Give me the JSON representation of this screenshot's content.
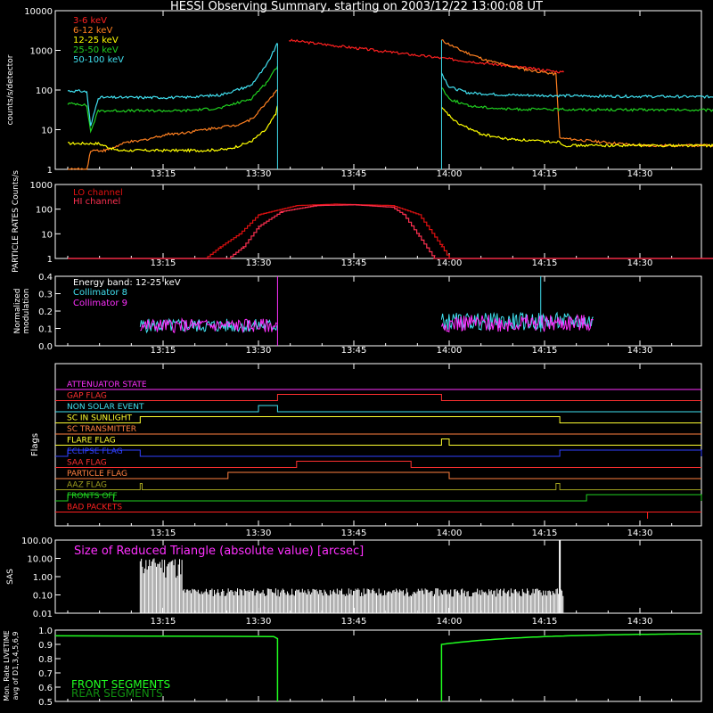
{
  "title": "HESSI Observing Summary, starting on 2003/12/22 13:00:08 UT",
  "time_ticks": [
    "13:15",
    "13:30",
    "13:45",
    "14:00",
    "14:15",
    "14:30"
  ],
  "colors": {
    "c3_6": "#ff2020",
    "c6_12": "#ff8020",
    "c12_25": "#ffff00",
    "c25_50": "#20d020",
    "c50_100": "#40e0f0",
    "lo": "#e01010",
    "hi": "#ff3050",
    "mag": "#ff30ff",
    "cyan": "#40e0f0",
    "front": "#20ff20",
    "rear": "#109010"
  },
  "chart_data": [
    {
      "id": "count-rate",
      "type": "line",
      "ylabel": "counts/s/detector",
      "yscale": "log",
      "ylim": [
        1,
        10000
      ],
      "yticks": [
        "1",
        "10",
        "100",
        "1000",
        "10000"
      ],
      "legend": [
        "3-6 keV",
        "6-12 keV",
        "12-25 keV",
        "25-50 keV",
        "50-100 keV"
      ],
      "legend_position": "top-left",
      "series": [
        {
          "name": "3-6 keV",
          "color": "#ff2020",
          "points": [
            [
              13.35,
              0.8
            ],
            [
              13.35,
              0.8
            ]
          ],
          "segments": [
            {
              "x": [
                13.58,
                14.3
              ],
              "y": [
                1800,
                280
              ]
            }
          ]
        },
        {
          "name": "6-12 keV",
          "color": "#ff8020",
          "segments": [
            {
              "x": [
                13.0,
                13.03,
                13.05,
                13.06,
                13.1,
                13.16,
                13.18,
                13.27,
                13.29,
                13.41,
                13.44,
                13.48,
                13.5,
                13.54,
                13.55
              ],
              "y": [
                1,
                1,
                1,
                3,
                3,
                5,
                5,
                8,
                8,
                12,
                13,
                18,
                28,
                80,
                100
              ]
            },
            {
              "x": [
                13.98,
                14.03,
                14.1,
                14.2,
                14.28,
                14.29,
                14.3,
                14.5,
                15.0
              ],
              "y": [
                1800,
                1000,
                550,
                330,
                250,
                6,
                6,
                4,
                4
              ]
            }
          ]
        },
        {
          "name": "12-25 keV",
          "color": "#ffff00",
          "segments": [
            {
              "x": [
                13.0,
                13.08,
                13.13,
                13.2,
                13.27,
                13.35,
                13.42,
                13.48,
                13.52,
                13.545,
                13.55
              ],
              "y": [
                4.5,
                4.5,
                3,
                3,
                3,
                3,
                3.2,
                5,
                10,
                25,
                40
              ]
            },
            {
              "x": [
                13.98,
                14.02,
                14.08,
                14.14,
                14.25,
                14.29,
                14.3,
                14.5,
                15.0
              ],
              "y": [
                35,
                15,
                8,
                6,
                5,
                5,
                4,
                4,
                4
              ]
            }
          ]
        },
        {
          "name": "25-50 keV",
          "color": "#20d020",
          "segments": [
            {
              "x": [
                13.0,
                13.03,
                13.05,
                13.06,
                13.08,
                13.3,
                13.4,
                13.48,
                13.52,
                13.55
              ],
              "y": [
                45,
                45,
                40,
                9,
                30,
                30,
                35,
                60,
                150,
                400
              ]
            },
            {
              "x": [
                13.98,
                14.0,
                14.05,
                14.15,
                14.4,
                15.0
              ],
              "y": [
                120,
                60,
                40,
                33,
                32,
                30
              ]
            }
          ]
        },
        {
          "name": "50-100 keV",
          "color": "#40e0f0",
          "segments": [
            {
              "x": [
                13.0,
                13.03,
                13.05,
                13.06,
                13.08,
                13.3,
                13.4,
                13.48,
                13.52,
                13.55
              ],
              "y": [
                95,
                95,
                90,
                12,
                65,
                65,
                75,
                130,
                400,
                1500
              ]
            },
            {
              "x": [
                13.98,
                14.0,
                14.05,
                14.15,
                14.4,
                15.0
              ],
              "y": [
                270,
                120,
                85,
                75,
                70,
                65
              ]
            }
          ]
        }
      ]
    },
    {
      "id": "particle-rates",
      "type": "line",
      "ylabel": "PARTICLE RATES Counts/s",
      "yscale": "log",
      "ylim": [
        1,
        1000
      ],
      "yticks": [
        "1",
        "10",
        "100",
        "1000"
      ],
      "legend": [
        "LO channel",
        "HI channel"
      ],
      "legend_position": "top-left",
      "series": [
        {
          "name": "LO channel",
          "color": "#e01010",
          "x": [
            13.0,
            13.36,
            13.4,
            13.45,
            13.5,
            13.6,
            13.7,
            13.85,
            13.92,
            13.98,
            14.0,
            15.0
          ],
          "y": [
            1,
            1,
            3,
            10,
            60,
            140,
            160,
            140,
            60,
            3,
            1,
            1
          ]
        },
        {
          "name": "HI channel",
          "color": "#ff3050",
          "x": [
            13.0,
            13.42,
            13.46,
            13.5,
            13.56,
            13.65,
            13.75,
            13.85,
            13.88,
            13.92,
            13.96,
            15.0
          ],
          "y": [
            1,
            1,
            3,
            20,
            80,
            140,
            150,
            120,
            60,
            8,
            1,
            1
          ]
        }
      ]
    },
    {
      "id": "modulation",
      "type": "line",
      "ylabel": "Normalized modulation",
      "ylim": [
        0,
        0.4
      ],
      "yticks": [
        "0.0",
        "0.1",
        "0.2",
        "0.3",
        "0.4"
      ],
      "legend": [
        "Energy band: 12-25 keV",
        "Collimator 8",
        "Collimator 9"
      ],
      "legend_position": "top-left"
    },
    {
      "id": "flags",
      "type": "line",
      "ylabel": "Flags",
      "flags": [
        {
          "name": "ATTENUATOR STATE",
          "color": "#ff30ff",
          "on": []
        },
        {
          "name": "GAP FLAG",
          "color": "#ff3030",
          "on": [
            [
              13.55,
              13.98
            ]
          ]
        },
        {
          "name": "NON SOLAR EVENT",
          "color": "#40e0f0",
          "on": [
            [
              13.5,
              13.55
            ]
          ]
        },
        {
          "name": "SC IN SUNLIGHT",
          "color": "#ffff30",
          "on": [
            [
              13.19,
              14.29
            ]
          ]
        },
        {
          "name": "SC TRANSMITTER",
          "color": "#ff8040",
          "on": []
        },
        {
          "name": "FLARE FLAG",
          "color": "#ffff30",
          "on": [
            [
              13.98,
              14.0
            ]
          ]
        },
        {
          "name": "ECLIPSE FLAG",
          "color": "#3040ff",
          "on": [
            [
              13.0,
              13.19
            ],
            [
              14.29,
              15.0
            ]
          ]
        },
        {
          "name": "SAA FLAG",
          "color": "#ff3030",
          "on": [
            [
              13.6,
              13.9
            ]
          ]
        },
        {
          "name": "PARTICLE FLAG",
          "color": "#ff8040",
          "on": [
            [
              13.42,
              14.0
            ]
          ]
        },
        {
          "name": "AAZ FLAG",
          "color": "#a0a020",
          "on": [
            [
              13.19,
              13.195
            ],
            [
              14.28,
              14.29
            ]
          ]
        },
        {
          "name": "FRONTS OFF",
          "color": "#20d020",
          "on": [
            [
              13.0,
              13.12
            ],
            [
              14.36,
              15.0
            ]
          ]
        },
        {
          "name": "BAD PACKETS",
          "color": "#ff2020",
          "on": []
        }
      ]
    },
    {
      "id": "sas",
      "type": "bar",
      "ylabel": "SAS",
      "yscale": "log",
      "ylim": [
        0.01,
        100
      ],
      "yticks": [
        "0.01",
        "0.10",
        "1.00",
        "10.00",
        "100.00"
      ],
      "annotation": "Size of Reduced Triangle (absolute value) [arcsec]"
    },
    {
      "id": "livetime",
      "type": "line",
      "ylabel": "Mon. Rate LIVETIME avg of D1,3,4,5,6,9",
      "ylim": [
        0.5,
        1.0
      ],
      "yticks": [
        "0.5",
        "0.6",
        "0.7",
        "0.8",
        "0.9",
        "1.0"
      ],
      "legend": [
        "FRONT SEGMENTS",
        "REAR SEGMENTS"
      ],
      "legend_position": "bottom-left"
    }
  ]
}
